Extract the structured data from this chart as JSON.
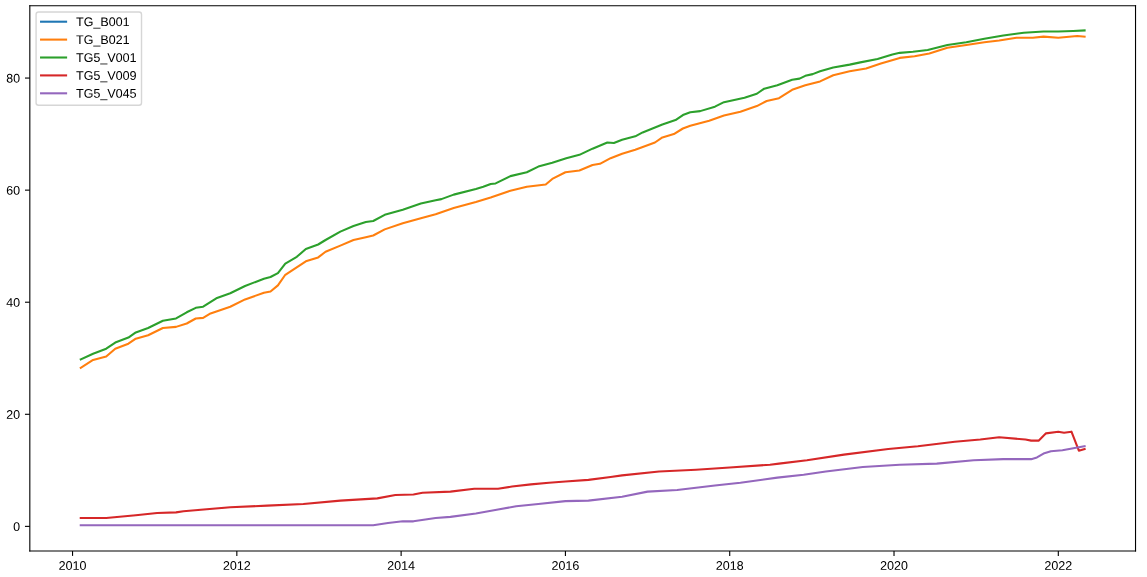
{
  "chart_data": {
    "type": "line",
    "xlim": [
      2009.48,
      2022.94
    ],
    "xticks": [
      2010,
      2012,
      2014,
      2016,
      2018,
      2020,
      2022
    ],
    "ylim": [
      -4.4,
      92.9
    ],
    "yticks": [
      0,
      20,
      40,
      60,
      80
    ],
    "grid": false,
    "legend": "top left",
    "series": [
      {
        "name": "TG_B001",
        "color": "#1f77b4"
      },
      {
        "name": "TG_B021",
        "color": "#ff7f0e",
        "x": [
          2010.1,
          2010.25,
          2010.41,
          2010.52,
          2010.68,
          2010.77,
          2010.92,
          2011.1,
          2011.26,
          2011.39,
          2011.5,
          2011.59,
          2011.68,
          2011.92,
          2012.1,
          2012.33,
          2012.41,
          2012.5,
          2012.59,
          2012.84,
          2012.99,
          2013.08,
          2013.26,
          2013.42,
          2013.57,
          2013.66,
          2013.8,
          2014.02,
          2014.24,
          2014.42,
          2014.64,
          2014.91,
          2015.09,
          2015.33,
          2015.53,
          2015.76,
          2015.84,
          2016.0,
          2016.17,
          2016.33,
          2016.42,
          2016.55,
          2016.69,
          2016.85,
          2017.09,
          2017.18,
          2017.32,
          2017.43,
          2017.52,
          2017.75,
          2017.93,
          2018.13,
          2018.33,
          2018.45,
          2018.6,
          2018.76,
          2018.92,
          2019.1,
          2019.26,
          2019.46,
          2019.66,
          2019.84,
          2020.07,
          2020.25,
          2020.43,
          2020.65,
          2020.88,
          2021.1,
          2021.28,
          2021.49,
          2021.69,
          2021.82,
          2022.0,
          2022.23,
          2022.32
        ],
        "values": [
          28.3,
          29.7,
          30.3,
          31.7,
          32.6,
          33.5,
          34.1,
          35.4,
          35.6,
          36.2,
          37.1,
          37.2,
          38.0,
          39.2,
          40.5,
          41.7,
          41.9,
          43.0,
          44.9,
          47.3,
          48.0,
          49.0,
          50.1,
          51.1,
          51.6,
          51.9,
          53.0,
          54.1,
          55.0,
          55.7,
          56.8,
          57.9,
          58.7,
          59.9,
          60.6,
          61.0,
          62.0,
          63.2,
          63.5,
          64.5,
          64.7,
          65.7,
          66.5,
          67.2,
          68.5,
          69.4,
          70.0,
          71.0,
          71.5,
          72.4,
          73.3,
          74.0,
          75.0,
          75.9,
          76.4,
          77.9,
          78.7,
          79.4,
          80.5,
          81.2,
          81.7,
          82.6,
          83.6,
          83.9,
          84.4,
          85.4,
          85.9,
          86.4,
          86.7,
          87.2,
          87.2,
          87.4,
          87.2,
          87.5,
          87.4
        ]
      },
      {
        "name": "TG5_V001",
        "color": "#2ca02c",
        "x": [
          2010.1,
          2010.25,
          2010.41,
          2010.52,
          2010.68,
          2010.77,
          2010.92,
          2011.1,
          2011.26,
          2011.39,
          2011.5,
          2011.59,
          2011.75,
          2011.92,
          2012.1,
          2012.33,
          2012.41,
          2012.5,
          2012.59,
          2012.73,
          2012.84,
          2012.99,
          2013.08,
          2013.26,
          2013.42,
          2013.57,
          2013.66,
          2013.8,
          2014.02,
          2014.24,
          2014.42,
          2014.49,
          2014.64,
          2014.91,
          2015.0,
          2015.09,
          2015.15,
          2015.33,
          2015.53,
          2015.67,
          2015.84,
          2016.01,
          2016.17,
          2016.33,
          2016.51,
          2016.59,
          2016.69,
          2016.85,
          2016.94,
          2017.18,
          2017.34,
          2017.43,
          2017.52,
          2017.64,
          2017.82,
          2017.93,
          2018.18,
          2018.33,
          2018.42,
          2018.58,
          2018.76,
          2018.85,
          2018.92,
          2019.01,
          2019.1,
          2019.26,
          2019.46,
          2019.59,
          2019.8,
          2019.98,
          2020.07,
          2020.23,
          2020.41,
          2020.65,
          2020.88,
          2021.1,
          2021.33,
          2021.58,
          2021.82,
          2022.0,
          2022.18,
          2022.32
        ],
        "values": [
          29.8,
          30.8,
          31.7,
          32.8,
          33.7,
          34.6,
          35.4,
          36.7,
          37.1,
          38.2,
          39.0,
          39.2,
          40.7,
          41.6,
          42.9,
          44.2,
          44.5,
          45.2,
          46.9,
          48.1,
          49.5,
          50.3,
          51.1,
          52.6,
          53.6,
          54.3,
          54.5,
          55.6,
          56.5,
          57.6,
          58.2,
          58.4,
          59.2,
          60.2,
          60.6,
          61.1,
          61.2,
          62.5,
          63.2,
          64.2,
          64.9,
          65.7,
          66.3,
          67.4,
          68.5,
          68.4,
          69.0,
          69.6,
          70.3,
          71.7,
          72.5,
          73.4,
          73.9,
          74.1,
          74.9,
          75.7,
          76.5,
          77.2,
          78.1,
          78.7,
          79.7,
          79.9,
          80.4,
          80.7,
          81.2,
          81.9,
          82.4,
          82.8,
          83.4,
          84.2,
          84.5,
          84.7,
          85.0,
          85.9,
          86.4,
          87.0,
          87.6,
          88.1,
          88.3,
          88.3,
          88.4,
          88.5
        ]
      },
      {
        "name": "TG5_V009",
        "color": "#d62728",
        "x": [
          2010.1,
          2010.41,
          2010.77,
          2011.03,
          2011.26,
          2011.35,
          2011.92,
          2012.37,
          2012.81,
          2013.26,
          2013.71,
          2013.93,
          2014.15,
          2014.26,
          2014.6,
          2014.89,
          2015.18,
          2015.35,
          2015.58,
          2015.8,
          2016.0,
          2016.28,
          2016.55,
          2016.69,
          2017.14,
          2017.59,
          2018.0,
          2018.49,
          2018.6,
          2018.94,
          2019.39,
          2019.93,
          2020.29,
          2020.74,
          2021.05,
          2021.28,
          2021.6,
          2021.67,
          2021.76,
          2021.85,
          2022.0,
          2022.07,
          2022.16,
          2022.25,
          2022.32
        ],
        "values": [
          1.5,
          1.5,
          2.0,
          2.4,
          2.5,
          2.7,
          3.4,
          3.7,
          4.0,
          4.6,
          5.0,
          5.6,
          5.7,
          6.0,
          6.2,
          6.7,
          6.7,
          7.1,
          7.5,
          7.8,
          8.0,
          8.3,
          8.8,
          9.1,
          9.8,
          10.1,
          10.5,
          11.0,
          11.2,
          11.8,
          12.8,
          13.8,
          14.3,
          15.1,
          15.5,
          15.9,
          15.5,
          15.3,
          15.3,
          16.6,
          16.9,
          16.7,
          16.9,
          13.5,
          13.8
        ]
      },
      {
        "name": "TG5_V045",
        "color": "#9467bd",
        "x": [
          2010.1,
          2013.66,
          2013.84,
          2014.02,
          2014.15,
          2014.42,
          2014.6,
          2014.91,
          2015.18,
          2015.4,
          2015.67,
          2016.0,
          2016.28,
          2016.69,
          2017.0,
          2017.36,
          2017.82,
          2018.13,
          2018.58,
          2018.9,
          2019.17,
          2019.62,
          2020.07,
          2020.52,
          2020.97,
          2021.33,
          2021.67,
          2021.74,
          2021.82,
          2021.91,
          2022.05,
          2022.32
        ],
        "values": [
          0.2,
          0.2,
          0.6,
          0.9,
          0.9,
          1.5,
          1.7,
          2.3,
          3.0,
          3.6,
          4.0,
          4.5,
          4.6,
          5.3,
          6.2,
          6.5,
          7.3,
          7.8,
          8.7,
          9.2,
          9.8,
          10.6,
          11.0,
          11.2,
          11.8,
          12.0,
          12.0,
          12.3,
          13.0,
          13.4,
          13.6,
          14.3
        ]
      }
    ]
  }
}
